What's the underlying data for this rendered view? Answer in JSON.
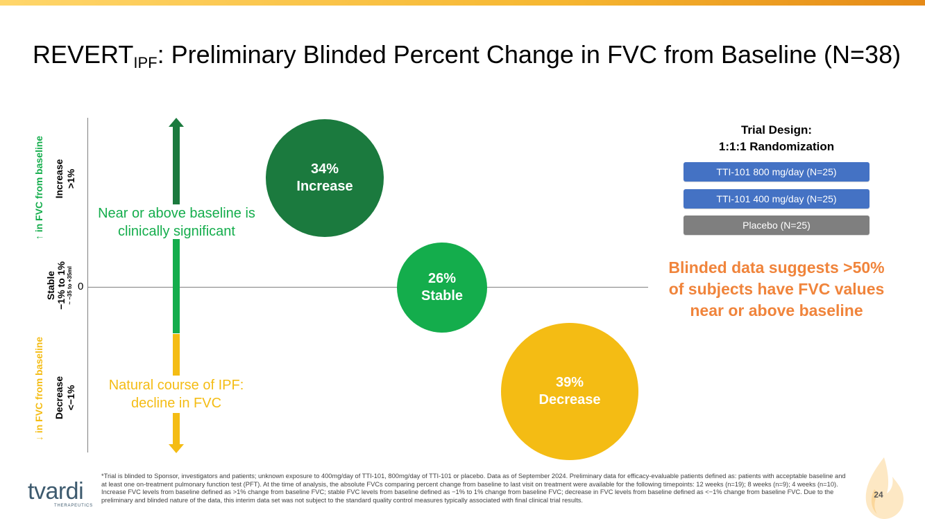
{
  "header": {
    "title_prefix": "REVERT",
    "title_subscript": "IPF",
    "title_rest": ": Preliminary Blinded Percent Change in FVC from Baseline (N=38)"
  },
  "axis": {
    "zero_label": "0",
    "upper_side_label": "↑ in FVC from baseline",
    "lower_side_label": "↓ in FVC from baseline",
    "increase_label": "Increase",
    "increase_range": ">1%",
    "stable_label": "Stable",
    "stable_range": "−1% to 1%",
    "stable_ml": "~ −35 to +35ml",
    "decrease_label": "Decrease",
    "decrease_range": "<−1%"
  },
  "annotations": {
    "upper_note": "Near or above baseline is clinically significant",
    "lower_note": "Natural course of IPF: decline in FVC"
  },
  "chart_data": {
    "type": "bubble",
    "categories": [
      "Increase",
      "Stable",
      "Decrease"
    ],
    "values": [
      34,
      26,
      39
    ],
    "unit": "%",
    "labels": [
      {
        "value": "34%",
        "category": "Increase"
      },
      {
        "value": "26%",
        "category": "Stable"
      },
      {
        "value": "39%",
        "category": "Decrease"
      }
    ],
    "colors": [
      "#1b7a3e",
      "#14ad4c",
      "#f4bc14"
    ],
    "title": "Preliminary Blinded Percent Change in FVC from Baseline (N=38)"
  },
  "trial_design": {
    "title_line1": "Trial Design:",
    "title_line2": "1:1:1 Randomization",
    "arms": [
      {
        "label": "TTI-101 800 mg/day (N=25)",
        "color": "#4472c4"
      },
      {
        "label": "TTI-101 400 mg/day (N=25)",
        "color": "#4472c4"
      },
      {
        "label": "Placebo (N=25)",
        "color": "#7f7f7f"
      }
    ]
  },
  "callout": "Blinded data suggests >50% of subjects have FVC values near or above baseline",
  "footnote": "*Trial is blinded to Sponsor, investigators and patients; unknown exposure to 400mg/day of TTI-101, 800mg/day of TTI-101 or placebo. Data as of September 2024. Preliminary data for efficacy-evaluable patients defined as: patients with acceptable baseline and at least one on-treatment pulmonary function test (PFT). At the time of analysis, the absolute FVCs comparing percent change from baseline to last visit on treatment were available for the following timepoints: 12 weeks (n=19); 8 weeks (n=9); 4 weeks (n=10). Increase FVC levels from baseline defined as >1% change from baseline FVC; stable FVC levels from baseline defined as −1% to 1% change from baseline FVC; decrease in FVC levels from baseline defined as <−1% change from baseline FVC. Due to the preliminary and blinded nature of the data, this interim data set was not subject to the standard quality control measures typically associated with final clinical trial results.",
  "logo": {
    "word": "tvardi",
    "sub": "THERAPEUTICS"
  },
  "page_number": "24",
  "colors": {
    "upper": "#14ad4c",
    "lower": "#f4bc14",
    "callout": "#f0843b"
  }
}
